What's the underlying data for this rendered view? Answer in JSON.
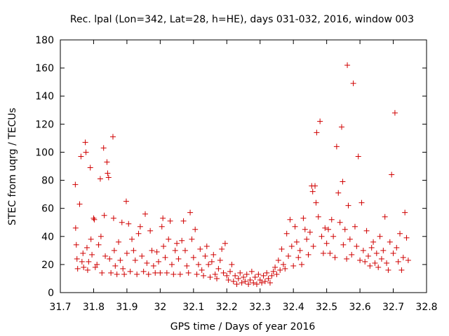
{
  "chart_data": {
    "type": "scatter",
    "title": "Rec. lpal (Lon=342, Lat=28, h=HE), days 031-032, 2016, window 003",
    "xlabel": "GPS time / Days of year 2016",
    "ylabel": "STEC from uqrg / TECUs",
    "xlim": [
      31.7,
      32.8
    ],
    "ylim": [
      0,
      180
    ],
    "x_ticks": [
      "31.7",
      "31.8",
      "31.9",
      "32",
      "32.1",
      "32.2",
      "32.3",
      "32.4",
      "32.5",
      "32.6",
      "32.7",
      "32.8"
    ],
    "y_ticks": [
      "0",
      "20",
      "40",
      "60",
      "80",
      "100",
      "120",
      "140",
      "160",
      "180"
    ],
    "grid": false,
    "marker": "+",
    "marker_color": "#d00000",
    "series": [
      {
        "points": [
          [
            31.745,
            77
          ],
          [
            31.746,
            46
          ],
          [
            31.748,
            34
          ],
          [
            31.75,
            24
          ],
          [
            31.752,
            17
          ],
          [
            31.758,
            63
          ],
          [
            31.762,
            97
          ],
          [
            31.765,
            22
          ],
          [
            31.768,
            28
          ],
          [
            31.77,
            18
          ],
          [
            31.775,
            107
          ],
          [
            31.777,
            100
          ],
          [
            31.78,
            32
          ],
          [
            31.782,
            16
          ],
          [
            31.785,
            22
          ],
          [
            31.79,
            89
          ],
          [
            31.792,
            38
          ],
          [
            31.795,
            27
          ],
          [
            31.8,
            53
          ],
          [
            31.802,
            52
          ],
          [
            31.805,
            18
          ],
          [
            31.81,
            20
          ],
          [
            31.815,
            34
          ],
          [
            31.82,
            81
          ],
          [
            31.822,
            40
          ],
          [
            31.825,
            14
          ],
          [
            31.83,
            103
          ],
          [
            31.832,
            55
          ],
          [
            31.835,
            26
          ],
          [
            31.84,
            93
          ],
          [
            31.842,
            85
          ],
          [
            31.845,
            82
          ],
          [
            31.848,
            24
          ],
          [
            31.852,
            14
          ],
          [
            31.858,
            111
          ],
          [
            31.86,
            53
          ],
          [
            31.862,
            30
          ],
          [
            31.865,
            19
          ],
          [
            31.87,
            13
          ],
          [
            31.875,
            36
          ],
          [
            31.88,
            23
          ],
          [
            31.885,
            50
          ],
          [
            31.888,
            17
          ],
          [
            31.892,
            13
          ],
          [
            31.898,
            65
          ],
          [
            31.9,
            28
          ],
          [
            31.905,
            49
          ],
          [
            31.91,
            15
          ],
          [
            31.915,
            38
          ],
          [
            31.92,
            30
          ],
          [
            31.925,
            23
          ],
          [
            31.93,
            13
          ],
          [
            31.935,
            42
          ],
          [
            31.94,
            47
          ],
          [
            31.945,
            26
          ],
          [
            31.95,
            15
          ],
          [
            31.955,
            56
          ],
          [
            31.96,
            21
          ],
          [
            31.965,
            13
          ],
          [
            31.97,
            44
          ],
          [
            31.975,
            30
          ],
          [
            31.98,
            19
          ],
          [
            31.985,
            14
          ],
          [
            31.99,
            29
          ],
          [
            31.995,
            22
          ],
          [
            32.0,
            14
          ],
          [
            32.005,
            47
          ],
          [
            32.008,
            53
          ],
          [
            32.01,
            33
          ],
          [
            32.015,
            25
          ],
          [
            32.02,
            14
          ],
          [
            32.025,
            38
          ],
          [
            32.03,
            51
          ],
          [
            32.035,
            20
          ],
          [
            32.04,
            13
          ],
          [
            32.045,
            30
          ],
          [
            32.05,
            35
          ],
          [
            32.055,
            24
          ],
          [
            32.06,
            13
          ],
          [
            32.065,
            37
          ],
          [
            32.07,
            51
          ],
          [
            32.075,
            30
          ],
          [
            32.08,
            19
          ],
          [
            32.085,
            14
          ],
          [
            32.09,
            57
          ],
          [
            32.095,
            38
          ],
          [
            32.1,
            25
          ],
          [
            32.105,
            45
          ],
          [
            32.11,
            13
          ],
          [
            32.115,
            20
          ],
          [
            32.12,
            31
          ],
          [
            32.125,
            16
          ],
          [
            32.13,
            12
          ],
          [
            32.135,
            26
          ],
          [
            32.14,
            33
          ],
          [
            32.145,
            20
          ],
          [
            32.15,
            11
          ],
          [
            32.155,
            22
          ],
          [
            32.16,
            27
          ],
          [
            32.165,
            13
          ],
          [
            32.17,
            10
          ],
          [
            32.175,
            17
          ],
          [
            32.18,
            23
          ],
          [
            32.185,
            31
          ],
          [
            32.19,
            14
          ],
          [
            32.195,
            35
          ],
          [
            32.2,
            12
          ],
          [
            32.205,
            9
          ],
          [
            32.21,
            15
          ],
          [
            32.215,
            20
          ],
          [
            32.22,
            8
          ],
          [
            32.225,
            12
          ],
          [
            32.23,
            6
          ],
          [
            32.235,
            10
          ],
          [
            32.24,
            14
          ],
          [
            32.245,
            7
          ],
          [
            32.25,
            11
          ],
          [
            32.255,
            8
          ],
          [
            32.26,
            13
          ],
          [
            32.265,
            6
          ],
          [
            32.27,
            9
          ],
          [
            32.275,
            15
          ],
          [
            32.28,
            7
          ],
          [
            32.285,
            11
          ],
          [
            32.29,
            6
          ],
          [
            32.295,
            13
          ],
          [
            32.3,
            9
          ],
          [
            32.305,
            7
          ],
          [
            32.31,
            12
          ],
          [
            32.315,
            8
          ],
          [
            32.32,
            14
          ],
          [
            32.325,
            10
          ],
          [
            32.33,
            7
          ],
          [
            32.335,
            12
          ],
          [
            32.34,
            15
          ],
          [
            32.345,
            18
          ],
          [
            32.35,
            13
          ],
          [
            32.355,
            23
          ],
          [
            32.36,
            16
          ],
          [
            32.365,
            31
          ],
          [
            32.37,
            20
          ],
          [
            32.375,
            17
          ],
          [
            32.38,
            42
          ],
          [
            32.385,
            26
          ],
          [
            32.39,
            52
          ],
          [
            32.395,
            33
          ],
          [
            32.4,
            19
          ],
          [
            32.405,
            47
          ],
          [
            32.41,
            36
          ],
          [
            32.415,
            25
          ],
          [
            32.42,
            30
          ],
          [
            32.425,
            20
          ],
          [
            32.43,
            53
          ],
          [
            32.435,
            45
          ],
          [
            32.44,
            38
          ],
          [
            32.445,
            27
          ],
          [
            32.45,
            43
          ],
          [
            32.455,
            76
          ],
          [
            32.458,
            72
          ],
          [
            32.46,
            33
          ],
          [
            32.465,
            76
          ],
          [
            32.468,
            64
          ],
          [
            32.47,
            114
          ],
          [
            32.475,
            54
          ],
          [
            32.48,
            122
          ],
          [
            32.485,
            40
          ],
          [
            32.49,
            28
          ],
          [
            32.495,
            46
          ],
          [
            32.5,
            35
          ],
          [
            32.505,
            45
          ],
          [
            32.51,
            28
          ],
          [
            32.515,
            52
          ],
          [
            32.52,
            40
          ],
          [
            32.525,
            25
          ],
          [
            32.53,
            104
          ],
          [
            32.535,
            71
          ],
          [
            32.54,
            50
          ],
          [
            32.545,
            118
          ],
          [
            32.548,
            79
          ],
          [
            32.55,
            34
          ],
          [
            32.555,
            45
          ],
          [
            32.56,
            24
          ],
          [
            32.562,
            162
          ],
          [
            32.565,
            62
          ],
          [
            32.57,
            38
          ],
          [
            32.575,
            27
          ],
          [
            32.58,
            149
          ],
          [
            32.585,
            47
          ],
          [
            32.59,
            33
          ],
          [
            32.595,
            97
          ],
          [
            32.6,
            23
          ],
          [
            32.605,
            64
          ],
          [
            32.61,
            30
          ],
          [
            32.615,
            22
          ],
          [
            32.62,
            44
          ],
          [
            32.625,
            26
          ],
          [
            32.63,
            19
          ],
          [
            32.635,
            32
          ],
          [
            32.64,
            36
          ],
          [
            32.645,
            21
          ],
          [
            32.65,
            28
          ],
          [
            32.655,
            18
          ],
          [
            32.66,
            40
          ],
          [
            32.665,
            24
          ],
          [
            32.67,
            30
          ],
          [
            32.675,
            54
          ],
          [
            32.68,
            21
          ],
          [
            32.685,
            16
          ],
          [
            32.69,
            36
          ],
          [
            32.695,
            84
          ],
          [
            32.7,
            28
          ],
          [
            32.705,
            128
          ],
          [
            32.71,
            32
          ],
          [
            32.715,
            22
          ],
          [
            32.72,
            42
          ],
          [
            32.725,
            16
          ],
          [
            32.73,
            25
          ],
          [
            32.735,
            57
          ],
          [
            32.74,
            39
          ],
          [
            32.745,
            23
          ]
        ]
      }
    ]
  }
}
